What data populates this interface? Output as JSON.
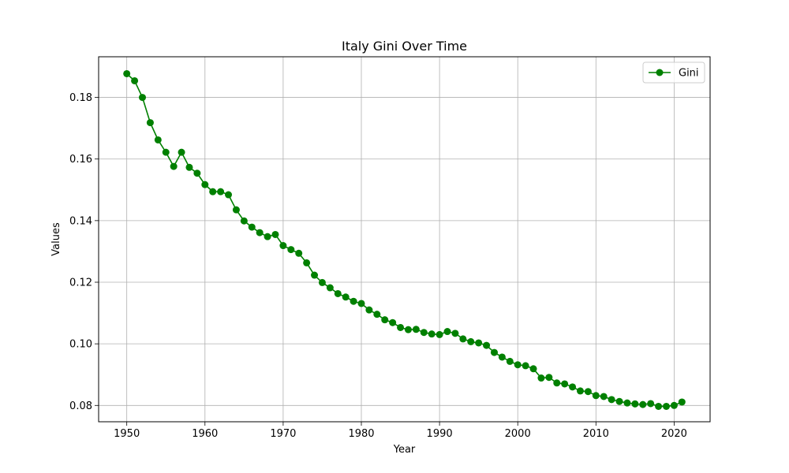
{
  "chart_data": {
    "type": "line",
    "title": "Italy Gini Over Time",
    "xlabel": "Year",
    "ylabel": "Values",
    "xlim": [
      1946.4,
      2024.6
    ],
    "ylim": [
      0.0747,
      0.1932
    ],
    "xticks": [
      1950,
      1960,
      1970,
      1980,
      1990,
      2000,
      2010,
      2020
    ],
    "yticks": [
      0.08,
      0.1,
      0.12,
      0.14,
      0.16,
      0.18
    ],
    "grid": true,
    "legend_position": "top-right",
    "colors": {
      "series": "#008000",
      "grid": "#b0b0b0",
      "axes": "#000000"
    },
    "series": [
      {
        "name": "Gini",
        "marker": "circle",
        "x": [
          1950,
          1951,
          1952,
          1953,
          1954,
          1955,
          1956,
          1957,
          1958,
          1959,
          1960,
          1961,
          1962,
          1963,
          1964,
          1965,
          1966,
          1967,
          1968,
          1969,
          1970,
          1971,
          1972,
          1973,
          1974,
          1975,
          1976,
          1977,
          1978,
          1979,
          1980,
          1981,
          1982,
          1983,
          1984,
          1985,
          1986,
          1987,
          1988,
          1989,
          1990,
          1991,
          1992,
          1993,
          1994,
          1995,
          1996,
          1997,
          1998,
          1999,
          2000,
          2001,
          2002,
          2003,
          2004,
          2005,
          2006,
          2007,
          2008,
          2009,
          2010,
          2011,
          2012,
          2013,
          2014,
          2015,
          2016,
          2017,
          2018,
          2019,
          2020,
          2021
        ],
        "y": [
          0.1877,
          0.1854,
          0.18,
          0.1718,
          0.1662,
          0.1622,
          0.1576,
          0.1622,
          0.1573,
          0.1554,
          0.1517,
          0.1494,
          0.1494,
          0.1484,
          0.1435,
          0.1399,
          0.1379,
          0.1361,
          0.1348,
          0.1355,
          0.1319,
          0.1306,
          0.1294,
          0.1263,
          0.1223,
          0.1199,
          0.1182,
          0.1163,
          0.1152,
          0.1138,
          0.1131,
          0.111,
          0.1096,
          0.1078,
          0.1069,
          0.1053,
          0.1046,
          0.1047,
          0.1037,
          0.1032,
          0.103,
          0.104,
          0.1034,
          0.1016,
          0.1007,
          0.1003,
          0.0995,
          0.0972,
          0.0957,
          0.0943,
          0.0932,
          0.0929,
          0.0919,
          0.0889,
          0.0891,
          0.0873,
          0.087,
          0.086,
          0.0847,
          0.0845,
          0.0832,
          0.0829,
          0.0819,
          0.0813,
          0.0808,
          0.0805,
          0.0803,
          0.0806,
          0.0797,
          0.0797,
          0.08,
          0.0811
        ]
      }
    ]
  }
}
